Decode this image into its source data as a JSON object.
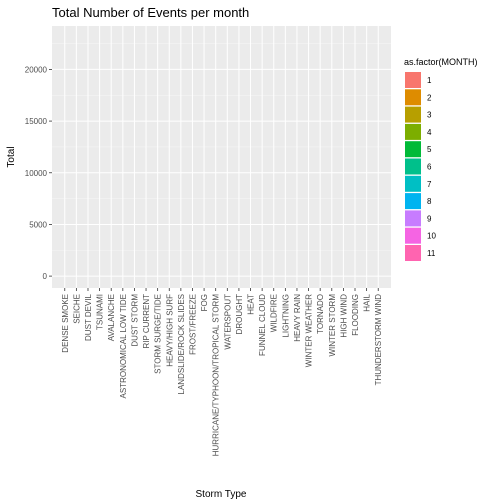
{
  "chart_data": {
    "type": "bar",
    "stacked": true,
    "title": "Total Number of Events per month",
    "xlabel": "Storm Type",
    "ylabel": "Total",
    "ylim": [
      -1150,
      24200
    ],
    "yticks": [
      0,
      5000,
      10000,
      15000,
      20000
    ],
    "grid": true,
    "legend_position": "right",
    "legend_title": "as.factor(MONTH)",
    "categories": [
      "DENSE SMOKE",
      "SEICHE",
      "DUST DEVIL",
      "TSUNAMI",
      "AVALANCHE",
      "ASTRONOMICAL LOW TIDE",
      "DUST STORM",
      "RIP CURRENT",
      "STORM SURGE/TIDE",
      "HEAVY/HIGH SURF",
      "LANDSLIDE/ROCK SLIDES",
      "FROST/FREEZE",
      "FOG",
      "HURRICANE/TYPHOON/TROPICAL STORM",
      "WATERSPOUT",
      "DROUGHT",
      "HEAT",
      "FUNNEL CLOUD",
      "WILDFIRE",
      "LIGHTNING",
      "HEAVY RAIN",
      "WINTER WEATHER",
      "TORNADO",
      "WINTER STORM",
      "HIGH WIND",
      "FLOODING",
      "HAIL",
      "THUNDERSTORM WIND"
    ],
    "series": [
      {
        "name": "1",
        "color": "#F8766D",
        "values": [
          0,
          0,
          0,
          0,
          0,
          0,
          0,
          0,
          0,
          0,
          0,
          0,
          0,
          0,
          0,
          0,
          0,
          0,
          0,
          0,
          0,
          0,
          0,
          0,
          0,
          0,
          0,
          0
        ]
      },
      {
        "name": "2",
        "color": "#DE8C00",
        "values": [
          0,
          0,
          0,
          0,
          0,
          0,
          0,
          0,
          0,
          0,
          0,
          0,
          0,
          0,
          0,
          0,
          0,
          0,
          0,
          0,
          0,
          0,
          0,
          0,
          0,
          0,
          0,
          0
        ]
      },
      {
        "name": "3",
        "color": "#B79F00",
        "values": [
          0,
          0,
          0,
          0,
          0,
          0,
          0,
          0,
          0,
          0,
          0,
          0,
          0,
          0,
          0,
          0,
          0,
          0,
          0,
          0,
          0,
          0,
          0,
          0,
          0,
          0,
          0,
          0
        ]
      },
      {
        "name": "4",
        "color": "#7CAE00",
        "values": [
          0,
          0,
          0,
          0,
          0,
          0,
          0,
          0,
          0,
          0,
          0,
          0,
          0,
          0,
          0,
          0,
          0,
          0,
          0,
          0,
          0,
          0,
          0,
          0,
          0,
          0,
          0,
          0
        ]
      },
      {
        "name": "5",
        "color": "#00BA38",
        "values": [
          0,
          0,
          0,
          0,
          0,
          0,
          0,
          0,
          0,
          0,
          0,
          0,
          0,
          0,
          0,
          0,
          0,
          0,
          0,
          0,
          0,
          0,
          0,
          0,
          0,
          0,
          0,
          0
        ]
      },
      {
        "name": "6",
        "color": "#00C08B",
        "values": [
          0,
          0,
          0,
          0,
          0,
          0,
          0,
          0,
          0,
          0,
          0,
          0,
          0,
          0,
          0,
          0,
          0,
          0,
          0,
          0,
          0,
          0,
          0,
          0,
          0,
          0,
          0,
          0
        ]
      },
      {
        "name": "7",
        "color": "#00BFC4",
        "values": [
          0,
          0,
          0,
          0,
          0,
          0,
          0,
          0,
          0,
          0,
          0,
          0,
          0,
          0,
          0,
          0,
          0,
          0,
          0,
          0,
          0,
          0,
          0,
          0,
          0,
          0,
          0,
          0
        ]
      },
      {
        "name": "8",
        "color": "#00B4F0",
        "values": [
          0,
          0,
          0,
          0,
          0,
          0,
          0,
          0,
          0,
          0,
          0,
          0,
          0,
          0,
          0,
          0,
          0,
          0,
          0,
          0,
          0,
          0,
          0,
          0,
          0,
          0,
          0,
          0
        ]
      },
      {
        "name": "9",
        "color": "#C77CFF",
        "values": [
          0,
          0,
          0,
          0,
          0,
          0,
          0,
          0,
          0,
          0,
          0,
          0,
          0,
          0,
          0,
          0,
          0,
          0,
          0,
          0,
          0,
          0,
          0,
          0,
          0,
          0,
          0,
          0
        ]
      },
      {
        "name": "10",
        "color": "#F564E3",
        "values": [
          0,
          0,
          0,
          0,
          0,
          0,
          0,
          0,
          0,
          0,
          0,
          0,
          0,
          0,
          0,
          0,
          0,
          0,
          0,
          0,
          0,
          0,
          0,
          0,
          0,
          0,
          0,
          0
        ]
      },
      {
        "name": "11",
        "color": "#FF64B0",
        "values": [
          0,
          0,
          0,
          0,
          0,
          0,
          0,
          0,
          0,
          0,
          0,
          0,
          0,
          0,
          0,
          0,
          0,
          0,
          0,
          0,
          0,
          0,
          0,
          0,
          0,
          0,
          0,
          0
        ]
      }
    ]
  }
}
